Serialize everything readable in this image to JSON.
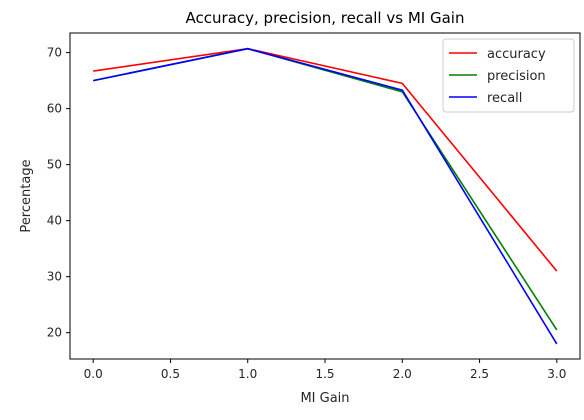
{
  "chart_data": {
    "type": "line",
    "title": "Accuracy, precision, recall vs MI Gain",
    "xlabel": "MI Gain",
    "ylabel": "Percentage",
    "xlim": [
      -0.15,
      3.15
    ],
    "ylim": [
      15.3,
      73.5
    ],
    "x_ticks": [
      0.0,
      0.5,
      1.0,
      1.5,
      2.0,
      2.5,
      3.0
    ],
    "x_tick_labels": [
      "0.0",
      "0.5",
      "1.0",
      "1.5",
      "2.0",
      "2.5",
      "3.0"
    ],
    "y_ticks": [
      20,
      30,
      40,
      50,
      60,
      70
    ],
    "y_tick_labels": [
      "20",
      "30",
      "40",
      "50",
      "60",
      "70"
    ],
    "grid": false,
    "legend_position": "top-right",
    "x": [
      0,
      1,
      2,
      3
    ],
    "series": [
      {
        "name": "accuracy",
        "color": "#ff0000",
        "values": [
          66.7,
          70.7,
          64.5,
          31.0
        ]
      },
      {
        "name": "precision",
        "color": "#008000",
        "values": [
          65.0,
          70.7,
          63.0,
          20.5
        ]
      },
      {
        "name": "recall",
        "color": "#0000ff",
        "values": [
          65.0,
          70.7,
          63.3,
          18.0
        ]
      }
    ]
  }
}
